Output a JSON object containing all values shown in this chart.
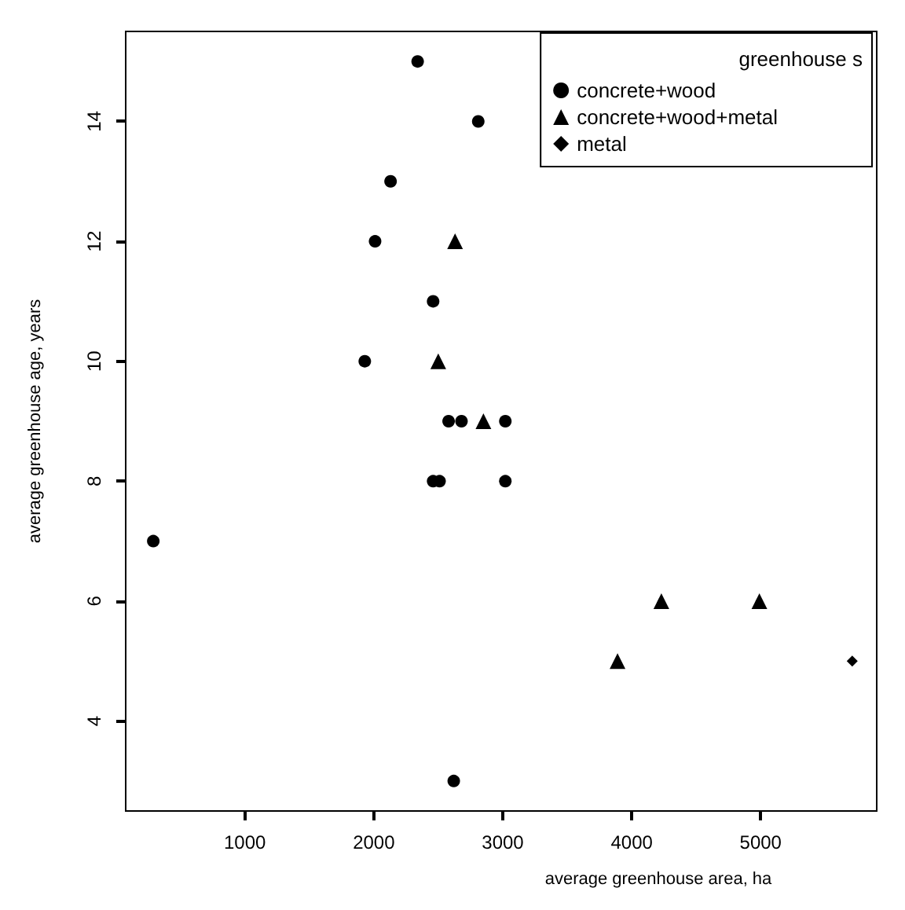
{
  "chart_data": {
    "type": "scatter",
    "xlabel": "average greenhouse area, ha",
    "ylabel": "average greenhouse age, years",
    "legend_title": "greenhouse s",
    "xlim": [
      76,
      5900
    ],
    "xticks": [
      1000,
      2000,
      3000,
      4000,
      5000
    ],
    "ylim": [
      2.5,
      15.5
    ],
    "yticks": [
      4,
      6,
      8,
      10,
      12,
      14
    ],
    "grid": false,
    "legend": "top right",
    "series": [
      {
        "name": "concrete+wood",
        "color": "#000000",
        "marker": "circle",
        "x": [
          2340,
          2810,
          2130,
          2010,
          2460,
          1930,
          2580,
          2680,
          3020,
          2460,
          2510,
          3020,
          290,
          2620
        ],
        "values": [
          15,
          14,
          13,
          12,
          11,
          10,
          9,
          9,
          9,
          8,
          8,
          8,
          7,
          3
        ]
      },
      {
        "name": "concrete+wood+metal",
        "color": "#000000",
        "marker": "triangle",
        "x": [
          2630,
          2500,
          2850,
          3890,
          4230,
          4990
        ],
        "values": [
          12,
          10,
          9,
          5,
          6,
          6
        ]
      },
      {
        "name": "metal",
        "color": "#000000",
        "marker": "diamond",
        "x": [
          5710
        ],
        "values": [
          5
        ]
      }
    ]
  }
}
